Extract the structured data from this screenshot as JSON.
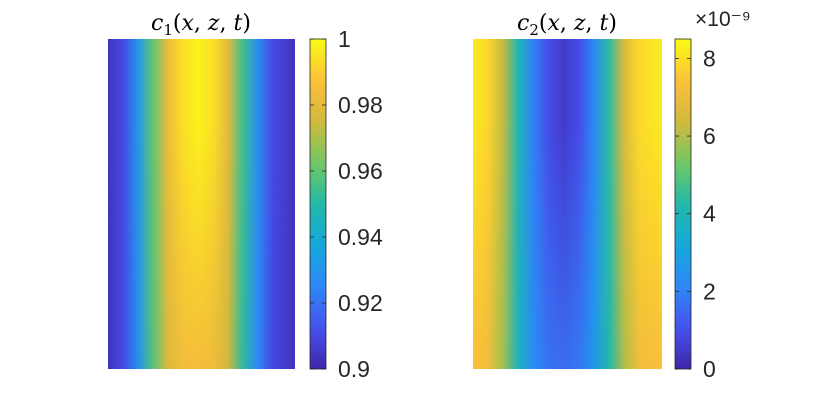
{
  "chart_data": [
    {
      "type": "heatmap",
      "title": "c₁(x, z, t)",
      "colormap": "parula",
      "clim": [
        0.9,
        1.0
      ],
      "colorbar_ticks": [
        "0.9",
        "0.92",
        "0.94",
        "0.96",
        "0.98",
        "1"
      ],
      "colorbar_tick_values": [
        0.9,
        0.92,
        0.94,
        0.96,
        0.98,
        1.0
      ],
      "profile_note": "values vary horizontally; high in center, low at edges",
      "profile": {
        "x": [
          0.0,
          0.08,
          0.16,
          0.24,
          0.32,
          0.4,
          0.48,
          0.56,
          0.64,
          0.72,
          0.8,
          0.88,
          1.0
        ],
        "value_top": [
          0.904,
          0.91,
          0.93,
          0.96,
          0.982,
          0.994,
          0.998,
          0.994,
          0.98,
          0.955,
          0.928,
          0.91,
          0.904
        ],
        "value_bottom": [
          0.904,
          0.91,
          0.928,
          0.958,
          0.978,
          0.984,
          0.985,
          0.983,
          0.975,
          0.952,
          0.926,
          0.91,
          0.904
        ]
      }
    },
    {
      "type": "heatmap",
      "title": "c₂(x, z, t)",
      "colormap": "parula",
      "clim": [
        0,
        8.5
      ],
      "scale_exponent": "×10⁻⁹",
      "colorbar_ticks": [
        "0",
        "2",
        "4",
        "6",
        "8"
      ],
      "colorbar_tick_values": [
        0,
        2,
        4,
        6,
        8
      ],
      "profile": {
        "x": [
          0.0,
          0.08,
          0.16,
          0.24,
          0.32,
          0.4,
          0.48,
          0.56,
          0.64,
          0.72,
          0.8,
          0.88,
          1.0
        ],
        "value_top": [
          8.2,
          7.8,
          6.2,
          4.0,
          2.0,
          0.9,
          0.5,
          0.9,
          2.2,
          4.4,
          6.6,
          7.9,
          8.2
        ],
        "value_bottom": [
          7.4,
          7.1,
          5.8,
          3.8,
          2.3,
          1.7,
          1.6,
          1.8,
          2.6,
          4.2,
          6.0,
          7.1,
          7.4
        ]
      }
    }
  ]
}
